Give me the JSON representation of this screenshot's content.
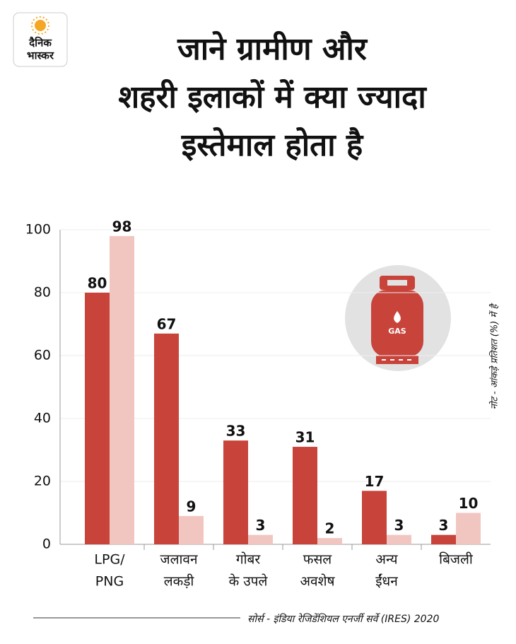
{
  "logo": [
    "दैनिक",
    "भास्कर"
  ],
  "chart_data": {
    "type": "bar",
    "title": [
      "जाने ग्रामीण और",
      "शहरी इलाकों में क्या ज्यादा",
      "इस्तेमाल होता है"
    ],
    "categories": [
      [
        "LPG/",
        "PNG"
      ],
      [
        "जलावन",
        "लकड़ी"
      ],
      [
        "गोबर",
        "के उपले"
      ],
      [
        "फसल",
        "अवशेष"
      ],
      [
        "अन्य",
        "ईंधन"
      ],
      [
        "बिजली"
      ]
    ],
    "series": [
      {
        "color": "#c8433a",
        "values": [
          80,
          67,
          33,
          31,
          17,
          3
        ]
      },
      {
        "color": "#f2c6c0",
        "values": [
          98,
          9,
          3,
          2,
          3,
          10
        ]
      }
    ],
    "ylim": [
      0,
      100
    ],
    "yticks": [
      0,
      20,
      40,
      60,
      80,
      100
    ],
    "grid": true,
    "icon_label": "GAS",
    "note": "नोट - आंकड़े प्रतिशत (%) में है",
    "source": "सोर्स - इंडिया रेजिडेंशियल एनर्जी सर्वे (IRES) 2020"
  }
}
